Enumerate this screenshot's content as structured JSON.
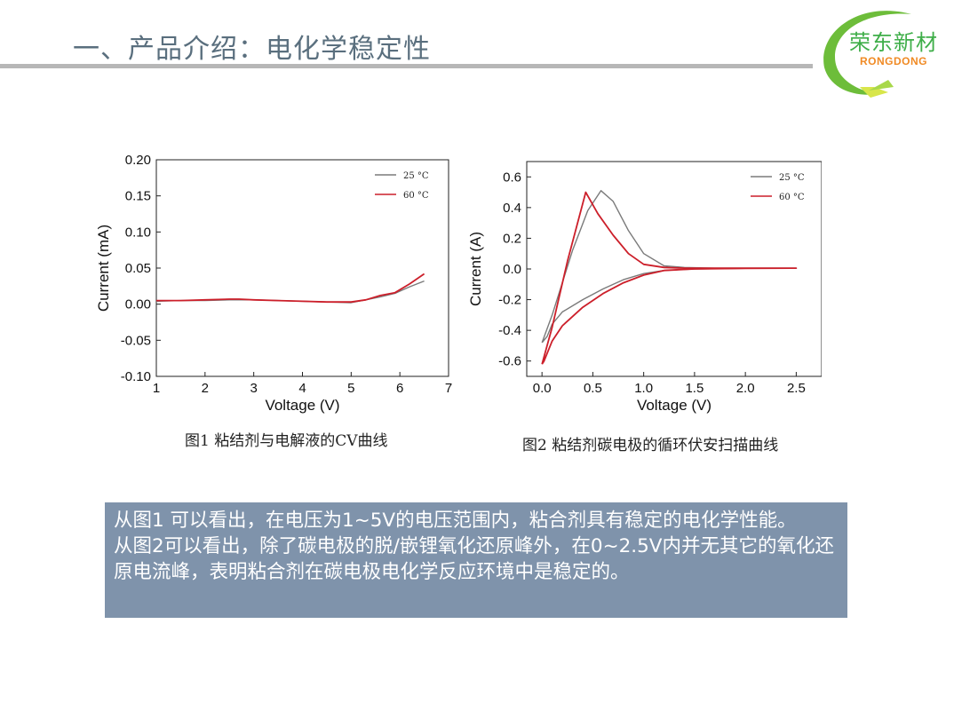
{
  "header": {
    "title": "一、产品介绍：电化学稳定性",
    "logo_cn": "荣东新材",
    "logo_en": "RONGDONG"
  },
  "colors": {
    "series_25": "#7a7a7a",
    "series_60": "#cc1f2a",
    "summary_bg": "#7f93ab"
  },
  "captions": {
    "fig1": "图1 粘结剂与电解液的CV曲线",
    "fig2": "图2 粘结剂碳电极的循环伏安扫描曲线"
  },
  "summary": {
    "line1": "从图1 可以看出，在电压为1~5V的电压范围内，粘合剂具有稳定的电化学性能。",
    "line2": "从图2可以看出，除了碳电极的脱/嵌锂氧化还原峰外，在0~2.5V内并无其它的氧化还原电流峰，表明粘合剂在碳电极电化学反应环境中是稳定的。"
  },
  "chart_data": [
    {
      "type": "line",
      "xlabel": "Voltage (V)",
      "ylabel": "Current (mA)",
      "xlim": [
        1,
        7
      ],
      "ylim": [
        -0.1,
        0.2
      ],
      "xticks": [
        "1",
        "2",
        "3",
        "4",
        "5",
        "6",
        "7"
      ],
      "yticks": [
        "-0.10",
        "-0.05",
        "0.00",
        "0.05",
        "0.10",
        "0.15",
        "0.20"
      ],
      "legend_position": "top-right",
      "series": [
        {
          "name": "25 °C",
          "x": [
            1.0,
            1.5,
            2.0,
            2.5,
            3.0,
            3.5,
            4.0,
            4.5,
            5.0,
            5.3,
            5.6,
            5.9,
            6.2,
            6.5
          ],
          "y": [
            0.004,
            0.005,
            0.005,
            0.006,
            0.006,
            0.005,
            0.004,
            0.003,
            0.002,
            0.006,
            0.01,
            0.015,
            0.024,
            0.032
          ]
        },
        {
          "name": "60 °C",
          "x": [
            1.0,
            1.5,
            2.0,
            2.5,
            2.7,
            3.0,
            3.5,
            4.0,
            4.5,
            5.0,
            5.3,
            5.6,
            5.9,
            6.2,
            6.5
          ],
          "y": [
            0.005,
            0.005,
            0.006,
            0.007,
            0.007,
            0.006,
            0.005,
            0.004,
            0.003,
            0.003,
            0.006,
            0.012,
            0.016,
            0.028,
            0.042
          ]
        }
      ]
    },
    {
      "type": "line",
      "xlabel": "Voltage (V)",
      "ylabel": "Current (A)",
      "xlim": [
        -0.15,
        2.75
      ],
      "ylim": [
        -0.7,
        0.7
      ],
      "xticks": [
        "0.0",
        "0.5",
        "1.0",
        "1.5",
        "2.0",
        "2.5"
      ],
      "yticks": [
        "-0.6",
        "-0.4",
        "-0.2",
        "0.0",
        "0.2",
        "0.4",
        "0.6"
      ],
      "legend_position": "top-right",
      "series": [
        {
          "name": "25 °C",
          "x": [
            0.0,
            0.1,
            0.3,
            0.45,
            0.58,
            0.7,
            0.85,
            1.0,
            1.2,
            1.4,
            1.7,
            2.0,
            2.5,
            2.5,
            2.0,
            1.5,
            1.2,
            1.0,
            0.8,
            0.6,
            0.4,
            0.2,
            0.1,
            0.05,
            0.0
          ],
          "y": [
            -0.48,
            -0.3,
            0.12,
            0.38,
            0.51,
            0.44,
            0.25,
            0.1,
            0.02,
            0.01,
            0.005,
            0.005,
            0.005,
            0.005,
            0.004,
            0.0,
            -0.01,
            -0.03,
            -0.07,
            -0.13,
            -0.2,
            -0.28,
            -0.36,
            -0.44,
            -0.48
          ]
        },
        {
          "name": "60 °C",
          "x": [
            0.0,
            0.1,
            0.25,
            0.43,
            0.55,
            0.7,
            0.85,
            1.0,
            1.2,
            1.4,
            1.7,
            2.0,
            2.5,
            2.5,
            2.0,
            1.5,
            1.2,
            1.0,
            0.8,
            0.6,
            0.4,
            0.2,
            0.1,
            0.02,
            0.0
          ],
          "y": [
            -0.62,
            -0.38,
            0.05,
            0.5,
            0.36,
            0.22,
            0.1,
            0.03,
            0.01,
            0.005,
            0.005,
            0.005,
            0.005,
            0.005,
            0.004,
            0.0,
            -0.01,
            -0.04,
            -0.09,
            -0.16,
            -0.25,
            -0.37,
            -0.47,
            -0.6,
            -0.62
          ]
        }
      ]
    }
  ]
}
